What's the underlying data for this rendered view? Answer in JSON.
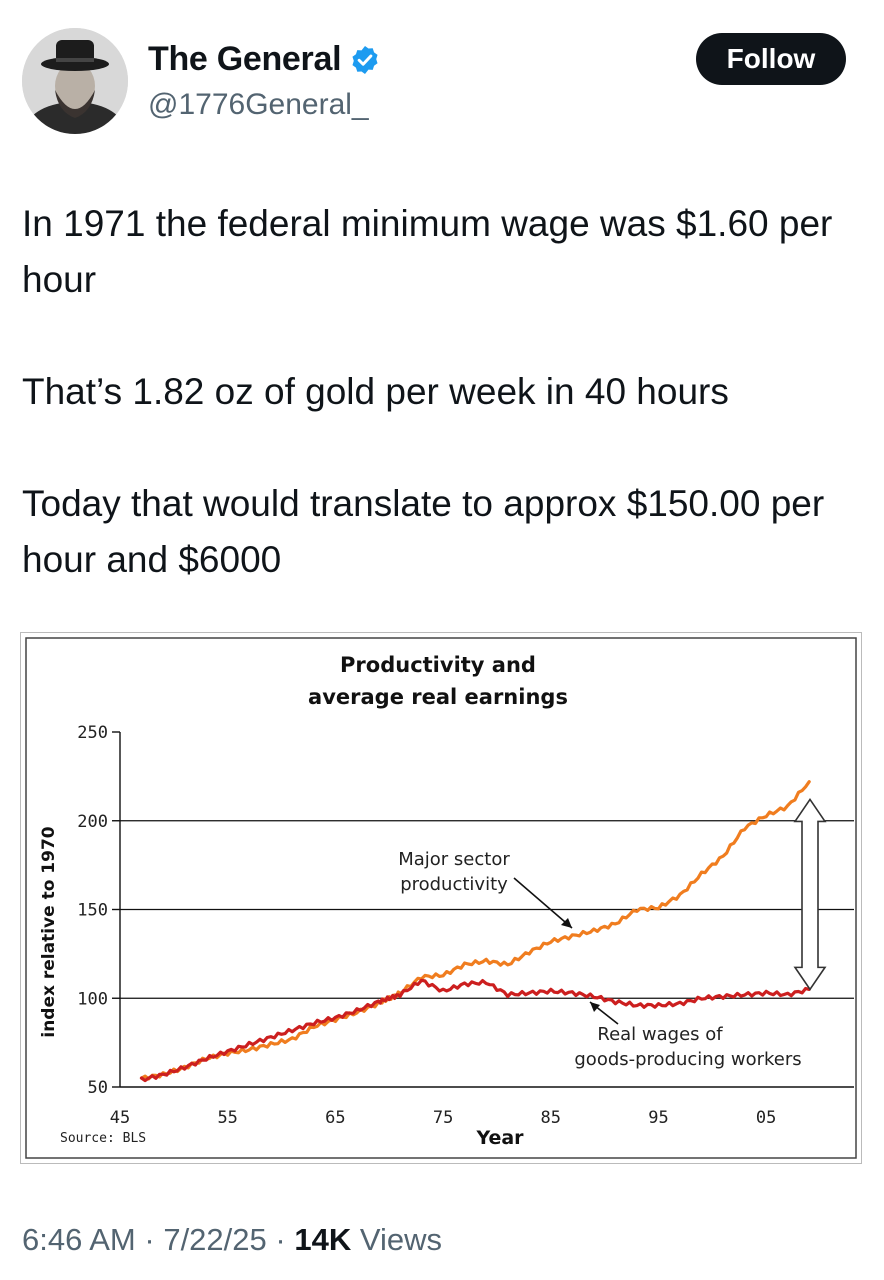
{
  "author": {
    "display_name": "The General",
    "handle": "@1776General_",
    "verified": true,
    "verified_color": "#1d9bf0"
  },
  "follow_label": "Follow",
  "tweet": {
    "paragraphs": [
      "In 1971 the federal minimum wage was $1.60 per hour",
      "That’s 1.82 oz of gold per week in 40 hours",
      "Today that would translate to approx $150.00 per hour and $6000"
    ]
  },
  "meta": {
    "time": "6:46 AM",
    "sep1": "·",
    "date": "7/22/25",
    "sep2": "·",
    "views_count": "14K",
    "views_label": "Views"
  },
  "chart_data": {
    "type": "line",
    "title_lines": [
      "Productivity and",
      "average real earnings"
    ],
    "ylabel": "index relative to 1970",
    "xlabel": "Year",
    "source": "Source: BLS",
    "xlim": [
      1945,
      2010
    ],
    "ylim": [
      50,
      250
    ],
    "x_ticks": [
      {
        "value": 1945,
        "label": "45"
      },
      {
        "value": 1955,
        "label": "55"
      },
      {
        "value": 1965,
        "label": "65"
      },
      {
        "value": 1975,
        "label": "75"
      },
      {
        "value": 1985,
        "label": "85"
      },
      {
        "value": 1995,
        "label": "95"
      },
      {
        "value": 2005,
        "label": "05"
      }
    ],
    "y_ticks": [
      50,
      100,
      150,
      200,
      250
    ],
    "gridlines": [
      100,
      150,
      200
    ],
    "series": [
      {
        "name": "Major sector productivity",
        "color": "#f07d1f",
        "x": [
          1947,
          1949,
          1951,
          1953,
          1955,
          1957,
          1959,
          1961,
          1963,
          1965,
          1967,
          1969,
          1970,
          1971,
          1973,
          1975,
          1977,
          1979,
          1981,
          1983,
          1985,
          1987,
          1989,
          1991,
          1993,
          1995,
          1997,
          1999,
          2001,
          2003,
          2005,
          2007,
          2009
        ],
        "y": [
          55,
          57,
          61,
          66,
          69,
          71,
          74,
          77,
          84,
          88,
          92,
          97,
          100,
          103,
          112,
          113,
          119,
          121,
          119,
          126,
          132,
          135,
          138,
          142,
          150,
          151,
          158,
          170,
          180,
          196,
          203,
          208,
          222
        ]
      },
      {
        "name": "Real wages of goods-producing workers",
        "color": "#cc1f1f",
        "x": [
          1947,
          1949,
          1951,
          1953,
          1955,
          1957,
          1959,
          1961,
          1963,
          1965,
          1967,
          1969,
          1970,
          1971,
          1973,
          1975,
          1977,
          1979,
          1981,
          1983,
          1985,
          1987,
          1989,
          1991,
          1993,
          1995,
          1997,
          1999,
          2001,
          2003,
          2005,
          2007,
          2009
        ],
        "y": [
          54,
          57,
          61,
          66,
          70,
          74,
          78,
          82,
          86,
          89,
          93,
          98,
          100,
          102,
          110,
          104,
          108,
          109,
          102,
          103,
          104,
          103,
          101,
          98,
          96,
          96,
          97,
          100,
          101,
          102,
          103,
          102,
          105
        ]
      }
    ],
    "annotations": [
      {
        "lines": [
          "Major sector",
          "productivity"
        ],
        "target": "Major sector productivity"
      },
      {
        "lines": [
          "Real wages of",
          "goods-producing workers"
        ],
        "target": "Real wages of goods-producing workers"
      }
    ],
    "gap_arrow": {
      "from": 105,
      "to": 212
    }
  }
}
